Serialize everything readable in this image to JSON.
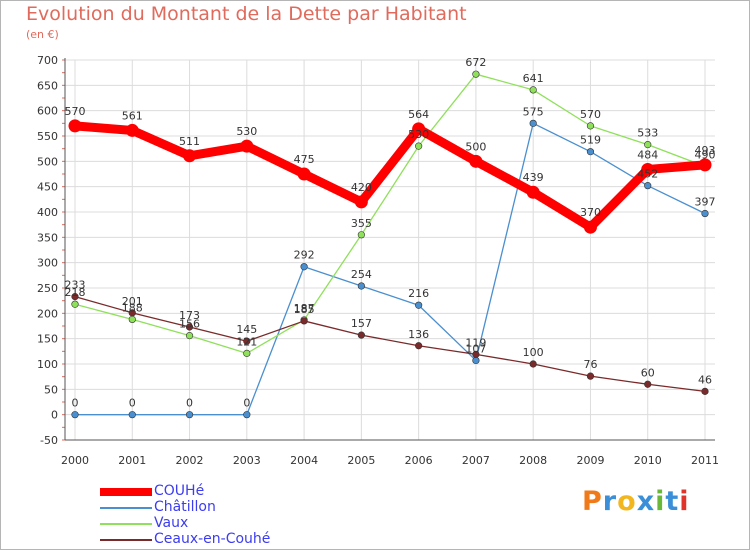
{
  "chart_data": {
    "type": "line",
    "title": "Evolution du Montant de la Dette par Habitant",
    "subtitle": "(en €)",
    "x": [
      "2000",
      "2001",
      "2002",
      "2003",
      "2004",
      "2005",
      "2006",
      "2007",
      "2008",
      "2009",
      "2010",
      "2011"
    ],
    "ylim": [
      -50,
      700
    ],
    "yticks": [
      -50,
      0,
      50,
      100,
      150,
      200,
      250,
      300,
      350,
      400,
      450,
      500,
      550,
      600,
      650,
      700
    ],
    "grid": true,
    "legend_position": "bottom-left",
    "series": [
      {
        "name": "COUHé",
        "color": "#ff0000",
        "values": [
          570,
          561,
          511,
          530,
          475,
          420,
          564,
          500,
          439,
          370,
          484,
          493
        ]
      },
      {
        "name": "Châtillon",
        "color": "#4a8fcf",
        "values": [
          0,
          0,
          0,
          0,
          292,
          254,
          216,
          107,
          575,
          519,
          452,
          397
        ]
      },
      {
        "name": "Vaux",
        "color": "#8fe05a",
        "values": [
          218,
          188,
          156,
          121,
          187,
          355,
          530,
          672,
          641,
          570,
          533,
          490
        ]
      },
      {
        "name": "Ceaux-en-Couhé",
        "color": "#7a2a2a",
        "values": [
          233,
          201,
          173,
          145,
          185,
          157,
          136,
          119,
          100,
          76,
          60,
          46
        ]
      }
    ]
  },
  "logo": {
    "text": "Proxiti",
    "colors": [
      "#f07a1a",
      "#3a8fd8",
      "#f2b61e",
      "#3a8fd8",
      "#6ab83a",
      "#3a8fd8",
      "#e0342a"
    ]
  }
}
